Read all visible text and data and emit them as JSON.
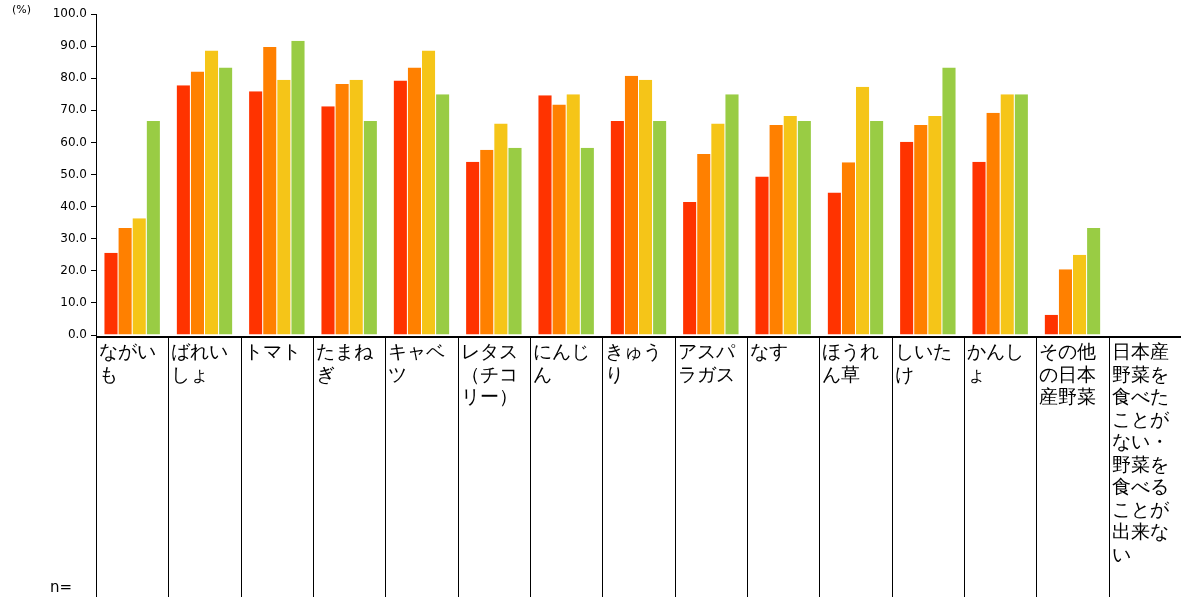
{
  "chart_data": {
    "type": "bar",
    "ylabel": "(%)",
    "categories": [
      "ながいも",
      "ばれいしょ",
      "トマト",
      "たまねぎ",
      "キャベツ",
      "レタス（チコリー）",
      "にんじん",
      "きゅうり",
      "アスパラガス",
      "なす",
      "ほうれん草",
      "しいたけ",
      "かんしょ",
      "その他の日本産野菜",
      "日本産野菜を食べたことがない・野菜を食べることが出来ない"
    ],
    "series": [
      {
        "color": "#ff3300",
        "values": [
          25.6,
          77.8,
          75.9,
          71.3,
          79.3,
          54.0,
          74.7,
          66.7,
          41.4,
          49.4,
          44.4,
          60.2,
          54.0,
          6.3,
          0
        ]
      },
      {
        "color": "#ff8000",
        "values": [
          33.3,
          82.1,
          89.7,
          78.2,
          83.3,
          57.7,
          71.8,
          80.8,
          56.4,
          65.4,
          53.8,
          65.4,
          69.2,
          20.5,
          0
        ]
      },
      {
        "color": "#f5c518",
        "values": [
          36.4,
          88.6,
          79.5,
          79.5,
          88.6,
          65.9,
          75.0,
          79.5,
          65.9,
          68.2,
          77.3,
          68.2,
          75.0,
          25.0,
          0
        ]
      },
      {
        "color": "#99cc44",
        "values": [
          66.7,
          83.3,
          91.7,
          66.7,
          75.0,
          58.3,
          58.3,
          66.7,
          75.0,
          66.7,
          66.7,
          83.3,
          75.0,
          33.3,
          0
        ]
      }
    ],
    "ylim": [
      0,
      100
    ],
    "yticks": [
      {
        "value": 0,
        "label": "0.0"
      },
      {
        "value": 10,
        "label": "10.0"
      },
      {
        "value": 20,
        "label": "20.0"
      },
      {
        "value": 30,
        "label": "30.0"
      },
      {
        "value": 40,
        "label": "40.0"
      },
      {
        "value": 50,
        "label": "50.0"
      },
      {
        "value": 60,
        "label": "60.0"
      },
      {
        "value": 70,
        "label": "70.0"
      },
      {
        "value": 80,
        "label": "80.0"
      },
      {
        "value": 90,
        "label": "90.0"
      },
      {
        "value": 100,
        "label": "100.0"
      }
    ],
    "grid": false,
    "legend": false,
    "annotations": [
      "n="
    ]
  }
}
